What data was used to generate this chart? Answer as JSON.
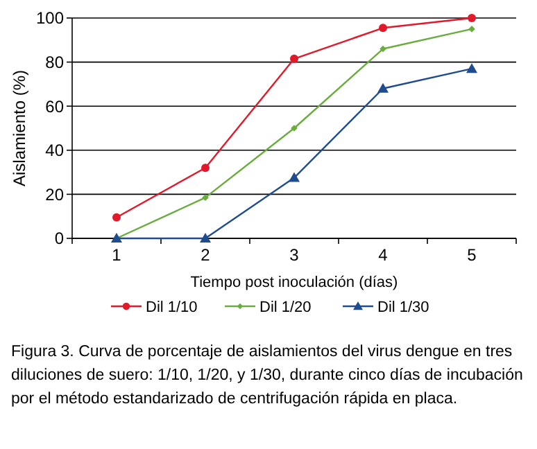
{
  "chart_data": {
    "type": "line",
    "ylabel": "Aislamiento (%)",
    "xlabel": "Tiempo post inoculación (días)",
    "categories": [
      "1",
      "2",
      "3",
      "4",
      "5"
    ],
    "series": [
      {
        "name": "Dil 1/10",
        "color": "#e0192b",
        "marker": "circle",
        "values": [
          9.5,
          32,
          81.5,
          95.5,
          100
        ]
      },
      {
        "name": "Dil 1/20",
        "color": "#6aac3e",
        "marker": "diamond",
        "values": [
          0,
          18.5,
          50,
          86,
          95
        ]
      },
      {
        "name": "Dil 1/30",
        "color": "#1f4c8f",
        "marker": "triangle",
        "values": [
          0,
          0,
          27.5,
          68,
          77
        ]
      }
    ],
    "ylim": [
      0,
      100
    ],
    "yticks": [
      0,
      20,
      40,
      60,
      80,
      100
    ],
    "grid": "y",
    "legend": "bottom",
    "annotations": [
      "Figura 3. Curva de porcentaje de aislamientos del virus dengue en tres diluciones de suero: 1/10, 1/20, y 1/30, durante cinco días de incubación por el método estandarizado de centrifugación rápida en placa."
    ]
  }
}
